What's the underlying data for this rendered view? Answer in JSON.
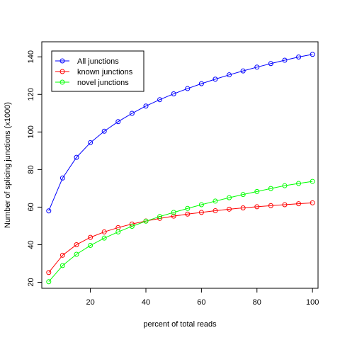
{
  "chart_data": {
    "type": "line",
    "title": "",
    "xlabel": "percent of total reads",
    "ylabel": "Number of splicing junctions (x1000)",
    "xlim": [
      2.5,
      102
    ],
    "ylim": [
      16.8,
      148
    ],
    "x_ticks": [
      20,
      40,
      60,
      80,
      100
    ],
    "y_ticks": [
      20,
      40,
      60,
      80,
      100,
      120,
      140
    ],
    "grid": false,
    "legend_position": "top-left",
    "x": [
      5,
      10,
      15,
      20,
      25,
      30,
      35,
      40,
      45,
      50,
      55,
      60,
      65,
      70,
      75,
      80,
      85,
      90,
      95,
      100
    ],
    "series": [
      {
        "name": "All junctions",
        "color": "#0000ff",
        "marker": "circle-open",
        "values": [
          58.0,
          75.5,
          86.5,
          94.3,
          100.4,
          105.5,
          109.9,
          113.8,
          117.2,
          120.3,
          123.1,
          125.7,
          128.1,
          130.4,
          132.5,
          134.5,
          136.4,
          138.2,
          139.9,
          141.3
        ]
      },
      {
        "name": "known junctions",
        "color": "#ff0000",
        "marker": "circle-open",
        "values": [
          25.2,
          34.4,
          40.0,
          43.9,
          46.8,
          49.1,
          51.0,
          52.6,
          54.0,
          55.2,
          56.3,
          57.2,
          58.1,
          58.9,
          59.6,
          60.2,
          60.8,
          61.3,
          61.8,
          62.3
        ]
      },
      {
        "name": "novel junctions",
        "color": "#00ff00",
        "marker": "circle-open",
        "values": [
          20.3,
          28.9,
          34.9,
          39.6,
          43.5,
          46.8,
          49.8,
          52.5,
          55.0,
          57.2,
          59.3,
          61.3,
          63.2,
          65.0,
          66.7,
          68.3,
          69.9,
          71.4,
          72.6,
          73.7
        ]
      }
    ]
  }
}
